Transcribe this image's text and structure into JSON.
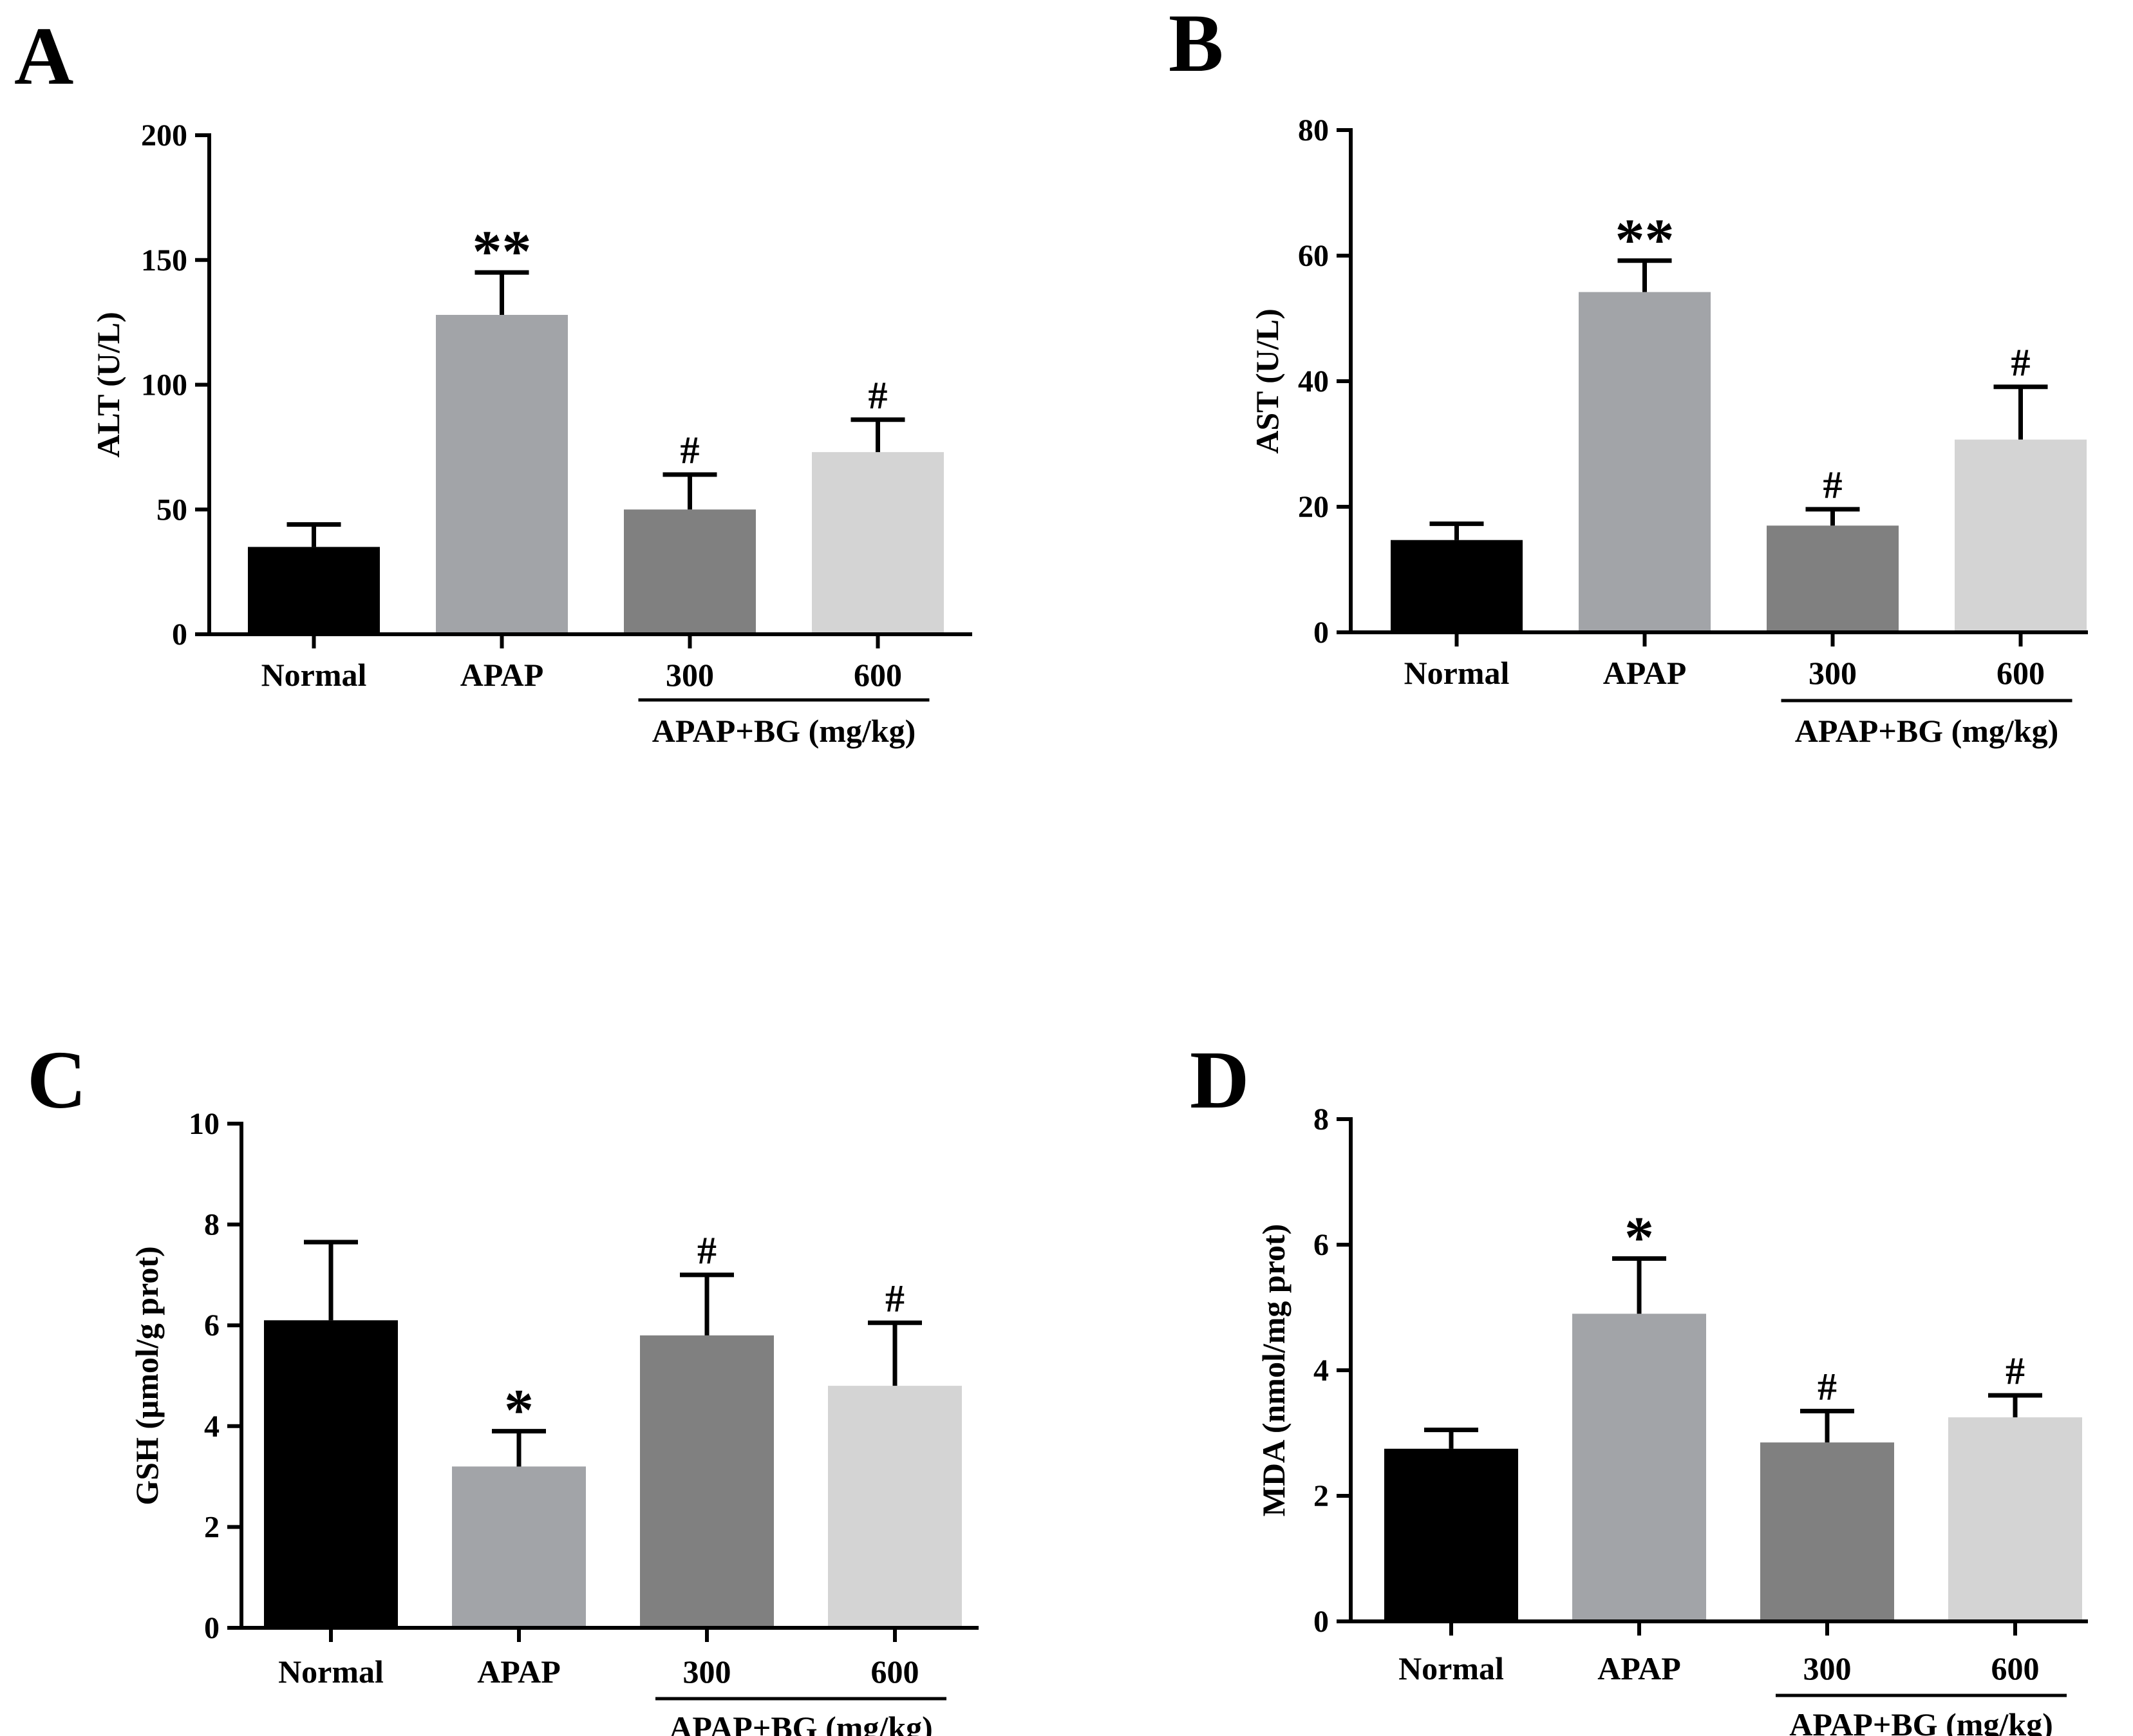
{
  "chart_data": [
    {
      "panel": "A",
      "type": "bar",
      "ylabel": "ALT (U/L)",
      "ylim": [
        0,
        200
      ],
      "yticks": [
        0,
        50,
        100,
        150,
        200
      ],
      "categories": [
        "Normal",
        "APAP",
        "300",
        "600"
      ],
      "group_label": "APAP+BG (mg/kg)",
      "group_span": [
        2,
        3
      ],
      "values": [
        35,
        128,
        50,
        73
      ],
      "errors": [
        9,
        17,
        14,
        13
      ],
      "significance": [
        "",
        "**",
        "#",
        "#"
      ],
      "bar_colors": [
        "#000000",
        "#a2a4a8",
        "#808080",
        "#d4d4d4"
      ]
    },
    {
      "panel": "B",
      "type": "bar",
      "ylabel": "AST (U/L)",
      "ylim": [
        0,
        80
      ],
      "yticks": [
        0,
        20,
        40,
        60,
        80
      ],
      "categories": [
        "Normal",
        "APAP",
        "300",
        "600"
      ],
      "group_label": "APAP+BG (mg/kg)",
      "group_span": [
        2,
        3
      ],
      "values": [
        14.7,
        54.2,
        17.0,
        30.7
      ],
      "errors": [
        2.6,
        5.0,
        2.6,
        8.4
      ],
      "significance": [
        "",
        "**",
        "#",
        "#"
      ],
      "bar_colors": [
        "#000000",
        "#a2a4a8",
        "#808080",
        "#d4d4d4"
      ]
    },
    {
      "panel": "C",
      "type": "bar",
      "ylabel": "GSH (μmol/g prot)",
      "ylim": [
        0,
        10
      ],
      "yticks": [
        0,
        2,
        4,
        6,
        8,
        10
      ],
      "categories": [
        "Normal",
        "APAP",
        "300",
        "600"
      ],
      "group_label": "APAP+BG (mg/kg)",
      "group_span": [
        2,
        3
      ],
      "values": [
        6.1,
        3.2,
        5.8,
        4.8
      ],
      "errors": [
        1.55,
        0.7,
        1.2,
        1.25
      ],
      "significance": [
        "",
        "*",
        "#",
        "#"
      ],
      "bar_colors": [
        "#000000",
        "#a2a4a8",
        "#808080",
        "#d4d4d4"
      ]
    },
    {
      "panel": "D",
      "type": "bar",
      "ylabel": "MDA (nmol/mg prot)",
      "ylim": [
        0,
        8
      ],
      "yticks": [
        0,
        2,
        4,
        6,
        8
      ],
      "categories": [
        "Normal",
        "APAP",
        "300",
        "600"
      ],
      "group_label": "APAP+BG (mg/kg)",
      "group_span": [
        2,
        3
      ],
      "values": [
        2.75,
        4.9,
        2.85,
        3.25
      ],
      "errors": [
        0.3,
        0.88,
        0.5,
        0.35
      ],
      "significance": [
        "",
        "*",
        "#",
        "#"
      ],
      "bar_colors": [
        "#000000",
        "#a2a4a8",
        "#808080",
        "#d4d4d4"
      ]
    }
  ]
}
